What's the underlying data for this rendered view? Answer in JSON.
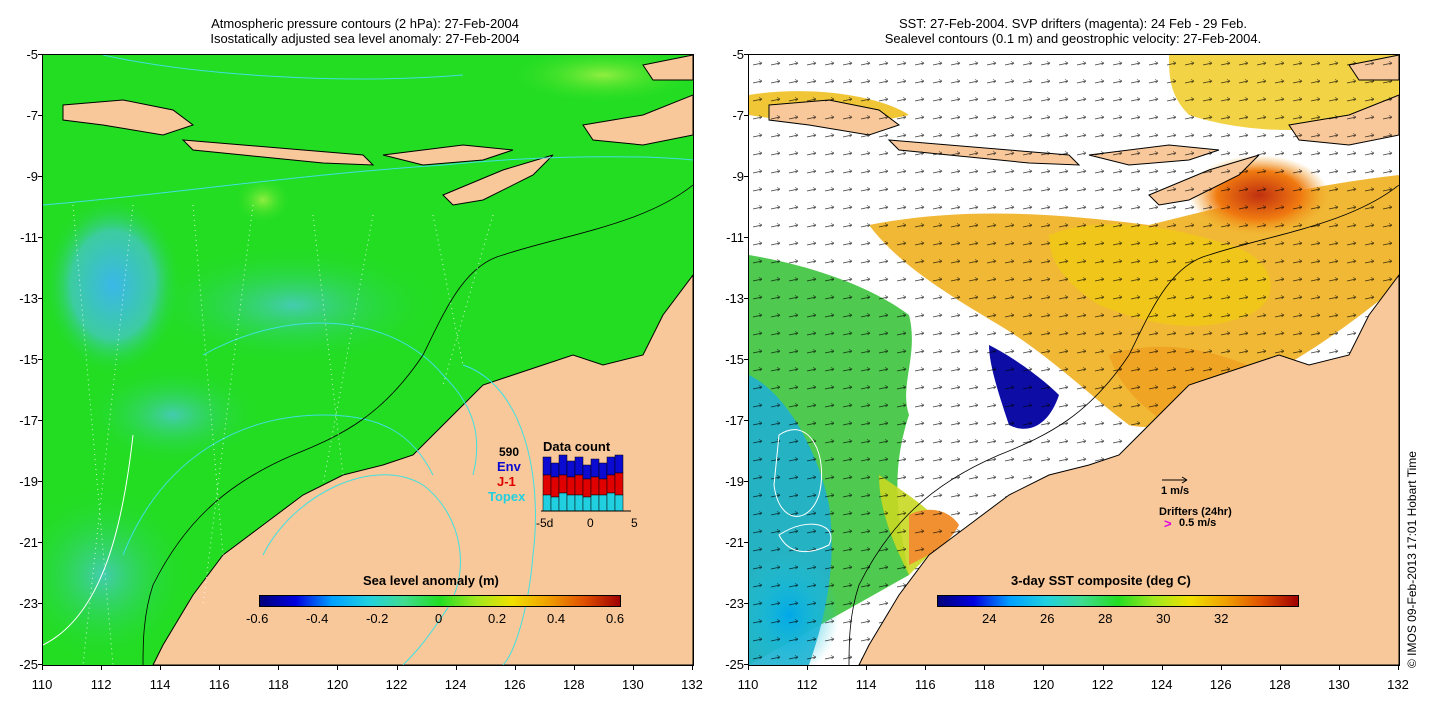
{
  "left_panel": {
    "title_line1": "Atmospheric pressure contours (2 hPa): 27-Feb-2004",
    "title_line2": "Isostatically adjusted sea level anomaly: 27-Feb-2004",
    "colorbar_title": "Sea level anomaly (m)",
    "colorbar_ticks": [
      "-0.6",
      "-0.4",
      "-0.2",
      "0",
      "0.2",
      "0.4",
      "0.6"
    ],
    "data_count": {
      "title": "Data count",
      "total": "590",
      "labels": [
        "Env",
        "J-1",
        "Topex"
      ],
      "label_colors": [
        "#0a0ad0",
        "#e00000",
        "#20d0e0"
      ],
      "x_ticks": [
        "-5d",
        "0",
        "5"
      ]
    }
  },
  "right_panel": {
    "title_line1": "SST: 27-Feb-2004. SVP drifters (magenta): 24 Feb - 29 Feb.",
    "title_line2": "Sealevel contours (0.1 m) and geostrophic velocity: 27-Feb-2004.",
    "colorbar_title": "3-day SST composite (deg C)",
    "colorbar_ticks": [
      "24",
      "26",
      "28",
      "30",
      "32"
    ],
    "velocity_scale": "1 m/s",
    "drifters_label": "Drifters (24hr)",
    "drifter_scale": "0.5 m/s",
    "drifter_arrow_glyph": ">"
  },
  "axes": {
    "lat_ticks": [
      "-5",
      "-7",
      "-9",
      "-11",
      "-13",
      "-15",
      "-17",
      "-19",
      "-21",
      "-23",
      "-25"
    ],
    "lon_ticks": [
      "110",
      "112",
      "114",
      "116",
      "118",
      "120",
      "122",
      "124",
      "126",
      "128",
      "130",
      "132"
    ]
  },
  "credit": "© IMOS 09-Feb-2013 17:01 Hobart Time",
  "colors": {
    "land": "#f8c89a",
    "ocean_anomaly": "#22dd22",
    "missing": "#ffffff"
  }
}
